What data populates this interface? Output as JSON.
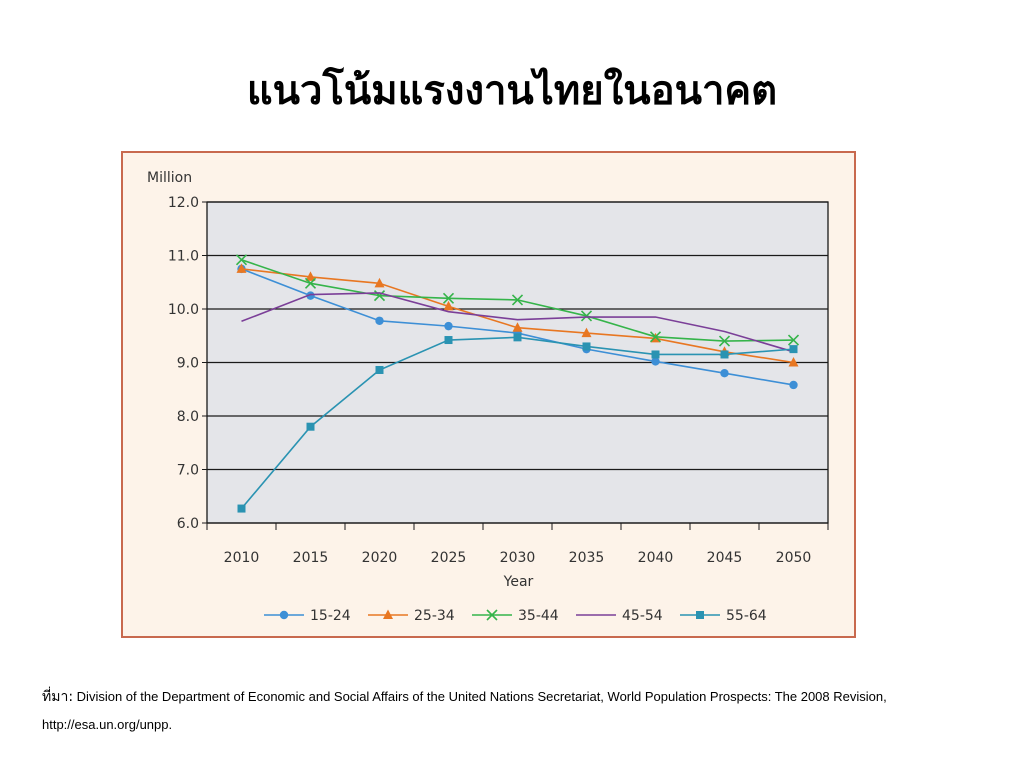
{
  "slide": {
    "title": "แนวโน้มแรงงานไทยในอนาคต",
    "source_label": "ที่มา:",
    "source_text": "Division of the Department of Economic and Social Affairs of the United Nations Secretariat, World Population Prospects: The 2008 Revision, http://esa.un.org/unpp."
  },
  "chart_data": {
    "type": "line",
    "title": "",
    "xlabel": "Year",
    "ylabel": "Million",
    "x": [
      2010,
      2015,
      2020,
      2025,
      2030,
      2035,
      2040,
      2045,
      2050
    ],
    "ylim": [
      6.0,
      12.0
    ],
    "yticks": [
      6.0,
      7.0,
      8.0,
      9.0,
      10.0,
      11.0,
      12.0
    ],
    "ytick_labels": [
      "6.0",
      "7.0",
      "8.0",
      "9.0",
      "10.0",
      "11.0",
      "12.0"
    ],
    "xtick_labels": [
      "2010",
      "2015",
      "2020",
      "2025",
      "2030",
      "2035",
      "2040",
      "2045",
      "2050"
    ],
    "grid": "horizontal",
    "legend_position": "bottom",
    "plot_background": "#e4e5e9",
    "series": [
      {
        "name": "15-24",
        "color": "#3d8fd6",
        "marker": "circle",
        "values": [
          10.75,
          10.25,
          9.78,
          9.68,
          9.55,
          9.25,
          9.02,
          8.8,
          8.58
        ]
      },
      {
        "name": "25-34",
        "color": "#e87722",
        "marker": "triangle",
        "values": [
          10.75,
          10.6,
          10.48,
          10.05,
          9.65,
          9.55,
          9.45,
          9.2,
          9.0
        ]
      },
      {
        "name": "35-44",
        "color": "#35b44a",
        "marker": "cross",
        "values": [
          10.92,
          10.48,
          10.25,
          10.2,
          10.17,
          9.87,
          9.48,
          9.4,
          9.42
        ]
      },
      {
        "name": "45-54",
        "color": "#7b3f98",
        "marker": "none",
        "values": [
          9.77,
          10.27,
          10.3,
          9.95,
          9.8,
          9.85,
          9.85,
          9.58,
          9.2
        ]
      },
      {
        "name": "55-64",
        "color": "#2a93b2",
        "marker": "square",
        "values": [
          6.27,
          7.8,
          8.86,
          9.42,
          9.47,
          9.3,
          9.15,
          9.15,
          9.25
        ]
      }
    ]
  }
}
